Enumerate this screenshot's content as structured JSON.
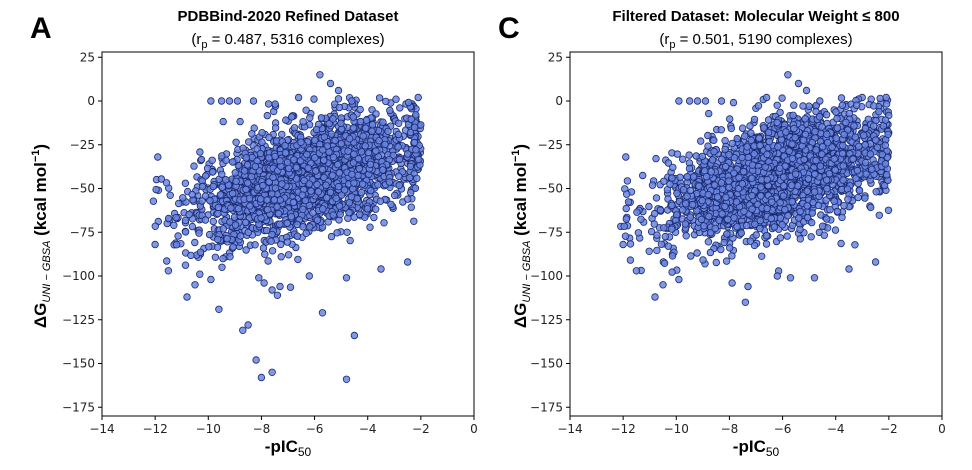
{
  "chart_data": [
    {
      "panel": "A",
      "type": "scatter",
      "title": "PDBBind-2020 Refined Dataset",
      "subtitle_prefix": "(r",
      "subtitle_sub": "p",
      "subtitle_suffix": " = 0.487, 5316 complexes)",
      "xlabel_main": "-pIC",
      "xlabel_sub": "50",
      "ylabel_main": "ΔG",
      "ylabel_sub": "UNI − GBSA",
      "ylabel_unit": " (kcal mol",
      "ylabel_sup": "−1",
      "ylabel_close": ")",
      "xlim": [
        -14,
        0
      ],
      "ylim": [
        -180,
        28
      ],
      "xticks": [
        -14,
        -12,
        -10,
        -8,
        -6,
        -4,
        -2,
        0
      ],
      "yticks": [
        25,
        0,
        -25,
        -50,
        -75,
        -100,
        -125,
        -150,
        -175
      ],
      "xtick_labels": [
        "−14",
        "−12",
        "−10",
        "−8",
        "−6",
        "−4",
        "−2",
        "0"
      ],
      "ytick_labels": [
        "25",
        "0",
        "−25",
        "−50",
        "−75",
        "−100",
        "−125",
        "−150",
        "−175"
      ],
      "outliers": [
        [
          -9.9,
          0
        ],
        [
          -9.5,
          0
        ],
        [
          -9.2,
          0
        ],
        [
          -8.9,
          0
        ],
        [
          -8.3,
          0
        ],
        [
          -6.6,
          2
        ],
        [
          -5.4,
          10
        ],
        [
          -5.1,
          6
        ],
        [
          -5.8,
          15
        ],
        [
          -2.1,
          2
        ],
        [
          -4.6,
          0
        ],
        [
          -11.9,
          -32
        ],
        [
          -10.8,
          -112
        ],
        [
          -9.6,
          -119
        ],
        [
          -8.7,
          -131
        ],
        [
          -8.5,
          -128
        ],
        [
          -8.1,
          -101
        ],
        [
          -7.9,
          -104
        ],
        [
          -7.4,
          -111
        ],
        [
          -7.3,
          -106
        ],
        [
          -7.6,
          -108
        ],
        [
          -5.7,
          -121
        ],
        [
          -6.2,
          -100
        ],
        [
          -4.8,
          -101
        ],
        [
          -2.5,
          -92
        ],
        [
          -8.2,
          -148
        ],
        [
          -8.0,
          -158
        ],
        [
          -7.6,
          -155
        ],
        [
          -4.8,
          -159
        ],
        [
          -4.5,
          -134
        ],
        [
          -3.5,
          -96
        ],
        [
          -11.5,
          -97
        ],
        [
          -10.5,
          -105
        ],
        [
          -9.9,
          -102
        ],
        [
          -12.0,
          -82
        ]
      ]
    },
    {
      "panel": "C",
      "type": "scatter",
      "title": "Filtered Dataset: Molecular Weight ≤ 800",
      "subtitle_prefix": "(r",
      "subtitle_sub": "p",
      "subtitle_suffix": " = 0.501, 5190 complexes)",
      "xlabel_main": "-pIC",
      "xlabel_sub": "50",
      "ylabel_main": "ΔG",
      "ylabel_sub": "UNI − GBSA",
      "ylabel_unit": " (kcal mol",
      "ylabel_sup": "−1",
      "ylabel_close": ")",
      "xlim": [
        -14,
        0
      ],
      "ylim": [
        -180,
        28
      ],
      "xticks": [
        -14,
        -12,
        -10,
        -8,
        -6,
        -4,
        -2,
        0
      ],
      "yticks": [
        25,
        0,
        -25,
        -50,
        -75,
        -100,
        -125,
        -150,
        -175
      ],
      "xtick_labels": [
        "−14",
        "−12",
        "−10",
        "−8",
        "−6",
        "−4",
        "−2",
        "0"
      ],
      "ytick_labels": [
        "25",
        "0",
        "−25",
        "−50",
        "−75",
        "−100",
        "−125",
        "−150",
        "−175"
      ],
      "outliers": [
        [
          -9.9,
          0
        ],
        [
          -9.5,
          0
        ],
        [
          -9.2,
          0
        ],
        [
          -8.9,
          0
        ],
        [
          -8.3,
          0
        ],
        [
          -6.6,
          2
        ],
        [
          -5.4,
          10
        ],
        [
          -5.1,
          6
        ],
        [
          -5.8,
          15
        ],
        [
          -2.1,
          2
        ],
        [
          -4.6,
          0
        ],
        [
          -11.9,
          -32
        ],
        [
          -10.8,
          -112
        ],
        [
          -7.9,
          -104
        ],
        [
          -7.4,
          -115
        ],
        [
          -7.3,
          -106
        ],
        [
          -6.2,
          -100
        ],
        [
          -4.8,
          -101
        ],
        [
          -2.5,
          -92
        ],
        [
          -3.5,
          -96
        ],
        [
          -11.5,
          -97
        ],
        [
          -10.5,
          -105
        ],
        [
          -9.9,
          -102
        ],
        [
          -12.0,
          -82
        ],
        [
          -5.7,
          -101
        ]
      ]
    }
  ]
}
